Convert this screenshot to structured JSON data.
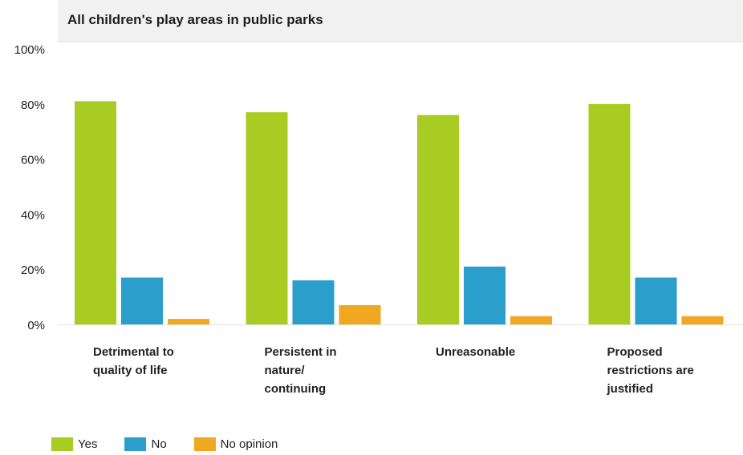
{
  "chart_data": {
    "type": "bar",
    "title": "All children's play areas in public parks",
    "categories": [
      [
        "Detrimental to",
        "quality of life"
      ],
      [
        "Persistent in",
        "nature/",
        "continuing"
      ],
      [
        "Unreasonable"
      ],
      [
        "Proposed",
        "restrictions are",
        "justified"
      ]
    ],
    "series": [
      {
        "name": "Yes",
        "color": "#a9cc23",
        "values": [
          81,
          77,
          76,
          80
        ]
      },
      {
        "name": "No",
        "color": "#2a9fcb",
        "values": [
          17,
          16,
          21,
          17
        ]
      },
      {
        "name": "No opinion",
        "color": "#f0a722",
        "values": [
          2,
          7,
          3,
          3
        ]
      }
    ],
    "yticks": [
      "0%",
      "20%",
      "40%",
      "60%",
      "80%",
      "100%"
    ],
    "ylim": [
      0,
      100
    ],
    "xlabel": "",
    "ylabel": "",
    "grid": false,
    "legend_position": "bottom-left"
  }
}
